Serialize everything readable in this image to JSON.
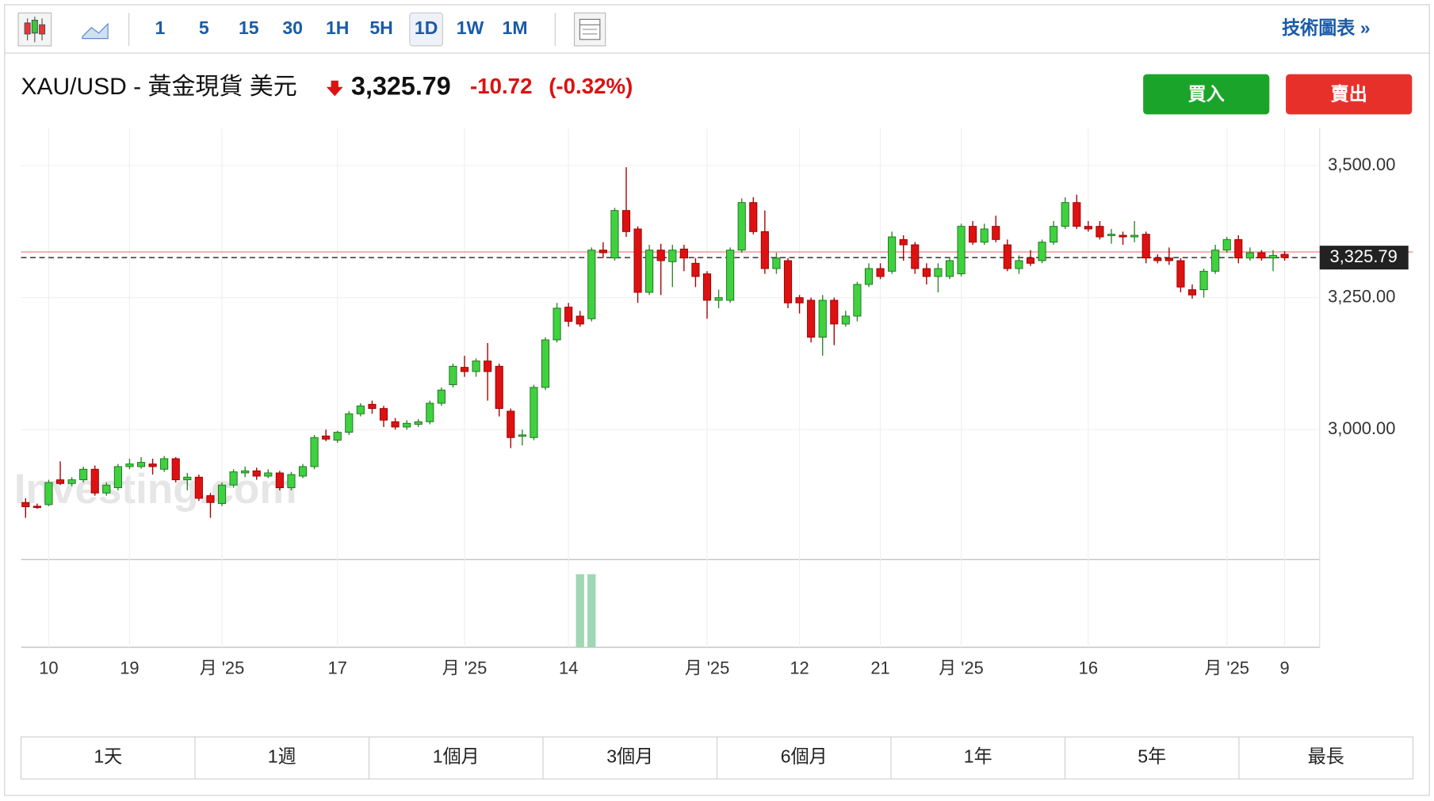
{
  "toolbar": {
    "intervals": [
      "1",
      "5",
      "15",
      "30",
      "1H",
      "5H",
      "1D",
      "1W",
      "1M"
    ],
    "link": "技術圖表 »"
  },
  "header": {
    "instrument": "XAU/USD - 黃金現貨 美元",
    "price": "3,325.79",
    "change": "-10.72",
    "change_pct": "(-0.32%)"
  },
  "buttons": {
    "buy": "買入",
    "sell": "賣出"
  },
  "chart_data": {
    "type": "candlestick",
    "up_color": "#3fd23f",
    "down_color": "#dd1111",
    "volume_color": "#9fd8b4",
    "ylim": [
      2754,
      3571
    ],
    "yticks": [
      {
        "value": 3500,
        "label": "3,500.00"
      },
      {
        "value": 3250,
        "label": "3,250.00"
      },
      {
        "value": 3000,
        "label": "3,000.00"
      }
    ],
    "last_price": {
      "value": 3325.79,
      "label": "3,325.79"
    },
    "prev_close": 3336.51,
    "grid": true,
    "categories": [
      null,
      null,
      "10",
      null,
      null,
      null,
      null,
      null,
      null,
      "19",
      null,
      null,
      null,
      null,
      null,
      null,
      null,
      "月 '25",
      null,
      null,
      null,
      null,
      null,
      null,
      null,
      null,
      null,
      "17",
      null,
      null,
      null,
      null,
      null,
      null,
      null,
      null,
      null,
      null,
      "月 '25",
      null,
      null,
      null,
      null,
      null,
      null,
      null,
      null,
      "14",
      null,
      null,
      null,
      null,
      null,
      null,
      null,
      null,
      null,
      null,
      null,
      "月 '25",
      null,
      null,
      null,
      null,
      null,
      null,
      null,
      "12",
      null,
      null,
      null,
      null,
      null,
      null,
      "21",
      null,
      null,
      null,
      null,
      null,
      null,
      "月 '25",
      null,
      null,
      null,
      null,
      null,
      null,
      null,
      null,
      null,
      null,
      "16",
      null,
      null,
      null,
      null,
      null,
      null,
      null,
      null,
      null,
      null,
      null,
      "月 '25",
      null,
      null,
      null,
      null,
      "9"
    ],
    "candles": [
      [
        2862,
        2870,
        2833,
        2854
      ],
      [
        2855,
        2860,
        2850,
        2853
      ],
      [
        2858,
        2905,
        2855,
        2900
      ],
      [
        2905,
        2940,
        2895,
        2898
      ],
      [
        2898,
        2910,
        2893,
        2905
      ],
      [
        2905,
        2930,
        2900,
        2925
      ],
      [
        2925,
        2932,
        2875,
        2880
      ],
      [
        2880,
        2900,
        2875,
        2895
      ],
      [
        2890,
        2935,
        2885,
        2930
      ],
      [
        2930,
        2945,
        2925,
        2935
      ],
      [
        2930,
        2948,
        2926,
        2938
      ],
      [
        2935,
        2945,
        2915,
        2930
      ],
      [
        2925,
        2950,
        2920,
        2945
      ],
      [
        2945,
        2948,
        2900,
        2905
      ],
      [
        2905,
        2918,
        2885,
        2910
      ],
      [
        2910,
        2915,
        2865,
        2870
      ],
      [
        2875,
        2880,
        2833,
        2862
      ],
      [
        2860,
        2900,
        2855,
        2895
      ],
      [
        2895,
        2925,
        2890,
        2920
      ],
      [
        2918,
        2930,
        2910,
        2922
      ],
      [
        2922,
        2928,
        2905,
        2912
      ],
      [
        2912,
        2925,
        2908,
        2918
      ],
      [
        2918,
        2922,
        2885,
        2890
      ],
      [
        2890,
        2920,
        2885,
        2915
      ],
      [
        2912,
        2935,
        2908,
        2930
      ],
      [
        2930,
        2990,
        2925,
        2985
      ],
      [
        2988,
        3000,
        2978,
        2982
      ],
      [
        2980,
        2998,
        2975,
        2995
      ],
      [
        2995,
        3035,
        2990,
        3030
      ],
      [
        3030,
        3050,
        3025,
        3045
      ],
      [
        3048,
        3055,
        3030,
        3040
      ],
      [
        3040,
        3045,
        3005,
        3018
      ],
      [
        3015,
        3022,
        3000,
        3005
      ],
      [
        3005,
        3018,
        3000,
        3012
      ],
      [
        3010,
        3020,
        3005,
        3015
      ],
      [
        3015,
        3055,
        3010,
        3050
      ],
      [
        3050,
        3080,
        3045,
        3075
      ],
      [
        3085,
        3125,
        3080,
        3120
      ],
      [
        3118,
        3140,
        3100,
        3110
      ],
      [
        3110,
        3135,
        3100,
        3130
      ],
      [
        3130,
        3164,
        3055,
        3110
      ],
      [
        3120,
        3125,
        3025,
        3040
      ],
      [
        3035,
        3040,
        2965,
        2985
      ],
      [
        2988,
        3000,
        2970,
        2990
      ],
      [
        2985,
        3085,
        2980,
        3080
      ],
      [
        3080,
        3175,
        3075,
        3170
      ],
      [
        3170,
        3240,
        3165,
        3230
      ],
      [
        3232,
        3240,
        3195,
        3205
      ],
      [
        3215,
        3225,
        3195,
        3200
      ],
      [
        3210,
        3345,
        3205,
        3340
      ],
      [
        3340,
        3355,
        3325,
        3335
      ],
      [
        3325,
        3420,
        3320,
        3415
      ],
      [
        3415,
        3497,
        3365,
        3375
      ],
      [
        3380,
        3385,
        3240,
        3260
      ],
      [
        3260,
        3350,
        3255,
        3340
      ],
      [
        3340,
        3352,
        3255,
        3320
      ],
      [
        3318,
        3350,
        3270,
        3340
      ],
      [
        3342,
        3350,
        3300,
        3325
      ],
      [
        3315,
        3325,
        3270,
        3290
      ],
      [
        3295,
        3300,
        3210,
        3245
      ],
      [
        3245,
        3265,
        3230,
        3250
      ],
      [
        3245,
        3345,
        3240,
        3340
      ],
      [
        3340,
        3438,
        3335,
        3430
      ],
      [
        3430,
        3440,
        3370,
        3375
      ],
      [
        3375,
        3415,
        3295,
        3305
      ],
      [
        3305,
        3335,
        3295,
        3325
      ],
      [
        3320,
        3325,
        3230,
        3240
      ],
      [
        3250,
        3255,
        3220,
        3240
      ],
      [
        3245,
        3250,
        3165,
        3175
      ],
      [
        3175,
        3255,
        3140,
        3245
      ],
      [
        3245,
        3250,
        3160,
        3200
      ],
      [
        3200,
        3225,
        3195,
        3215
      ],
      [
        3215,
        3280,
        3205,
        3275
      ],
      [
        3275,
        3315,
        3270,
        3305
      ],
      [
        3305,
        3315,
        3285,
        3290
      ],
      [
        3300,
        3375,
        3295,
        3365
      ],
      [
        3360,
        3368,
        3320,
        3350
      ],
      [
        3350,
        3355,
        3295,
        3305
      ],
      [
        3305,
        3315,
        3275,
        3290
      ],
      [
        3290,
        3315,
        3260,
        3305
      ],
      [
        3290,
        3325,
        3285,
        3320
      ],
      [
        3295,
        3390,
        3290,
        3385
      ],
      [
        3385,
        3395,
        3350,
        3355
      ],
      [
        3355,
        3390,
        3350,
        3380
      ],
      [
        3385,
        3405,
        3355,
        3360
      ],
      [
        3350,
        3360,
        3300,
        3305
      ],
      [
        3305,
        3330,
        3295,
        3320
      ],
      [
        3325,
        3340,
        3310,
        3315
      ],
      [
        3320,
        3360,
        3315,
        3355
      ],
      [
        3355,
        3395,
        3350,
        3385
      ],
      [
        3385,
        3440,
        3380,
        3430
      ],
      [
        3430,
        3445,
        3380,
        3385
      ],
      [
        3385,
        3395,
        3375,
        3380
      ],
      [
        3385,
        3395,
        3360,
        3365
      ],
      [
        3368,
        3380,
        3352,
        3370
      ],
      [
        3368,
        3375,
        3350,
        3365
      ],
      [
        3365,
        3395,
        3355,
        3368
      ],
      [
        3370,
        3375,
        3315,
        3325
      ],
      [
        3325,
        3332,
        3315,
        3320
      ],
      [
        3325,
        3345,
        3312,
        3320
      ],
      [
        3320,
        3325,
        3260,
        3270
      ],
      [
        3265,
        3275,
        3248,
        3255
      ],
      [
        3265,
        3305,
        3250,
        3300
      ],
      [
        3300,
        3350,
        3295,
        3340
      ],
      [
        3340,
        3365,
        3335,
        3360
      ],
      [
        3360,
        3368,
        3315,
        3325
      ],
      [
        3325,
        3345,
        3320,
        3335
      ],
      [
        3335,
        3340,
        3320,
        3325
      ],
      [
        3325,
        3340,
        3300,
        3330
      ],
      [
        3332,
        3338,
        3320,
        3325.79
      ]
    ],
    "volume": [
      null,
      null,
      null,
      null,
      null,
      null,
      null,
      null,
      null,
      null,
      null,
      null,
      null,
      null,
      null,
      null,
      null,
      null,
      null,
      null,
      null,
      null,
      null,
      null,
      null,
      null,
      null,
      null,
      null,
      null,
      null,
      null,
      null,
      null,
      null,
      null,
      null,
      null,
      null,
      null,
      null,
      null,
      null,
      null,
      null,
      null,
      null,
      null,
      100,
      100,
      null,
      null,
      null,
      null,
      null,
      null,
      null,
      null,
      null,
      null,
      null,
      null,
      null,
      null,
      null,
      null,
      null,
      null,
      null,
      null,
      null,
      null,
      null,
      null,
      null,
      null,
      null,
      null,
      null,
      null,
      null,
      null,
      null,
      null,
      null,
      null,
      null,
      null,
      null,
      null,
      null,
      null,
      null,
      null,
      null,
      null,
      null,
      null,
      null,
      null,
      null,
      null,
      null,
      null,
      null,
      null,
      null,
      null,
      null,
      null
    ]
  },
  "ranges": [
    "1天",
    "1週",
    "1個月",
    "3個月",
    "6個月",
    "1年",
    "5年",
    "最長"
  ]
}
